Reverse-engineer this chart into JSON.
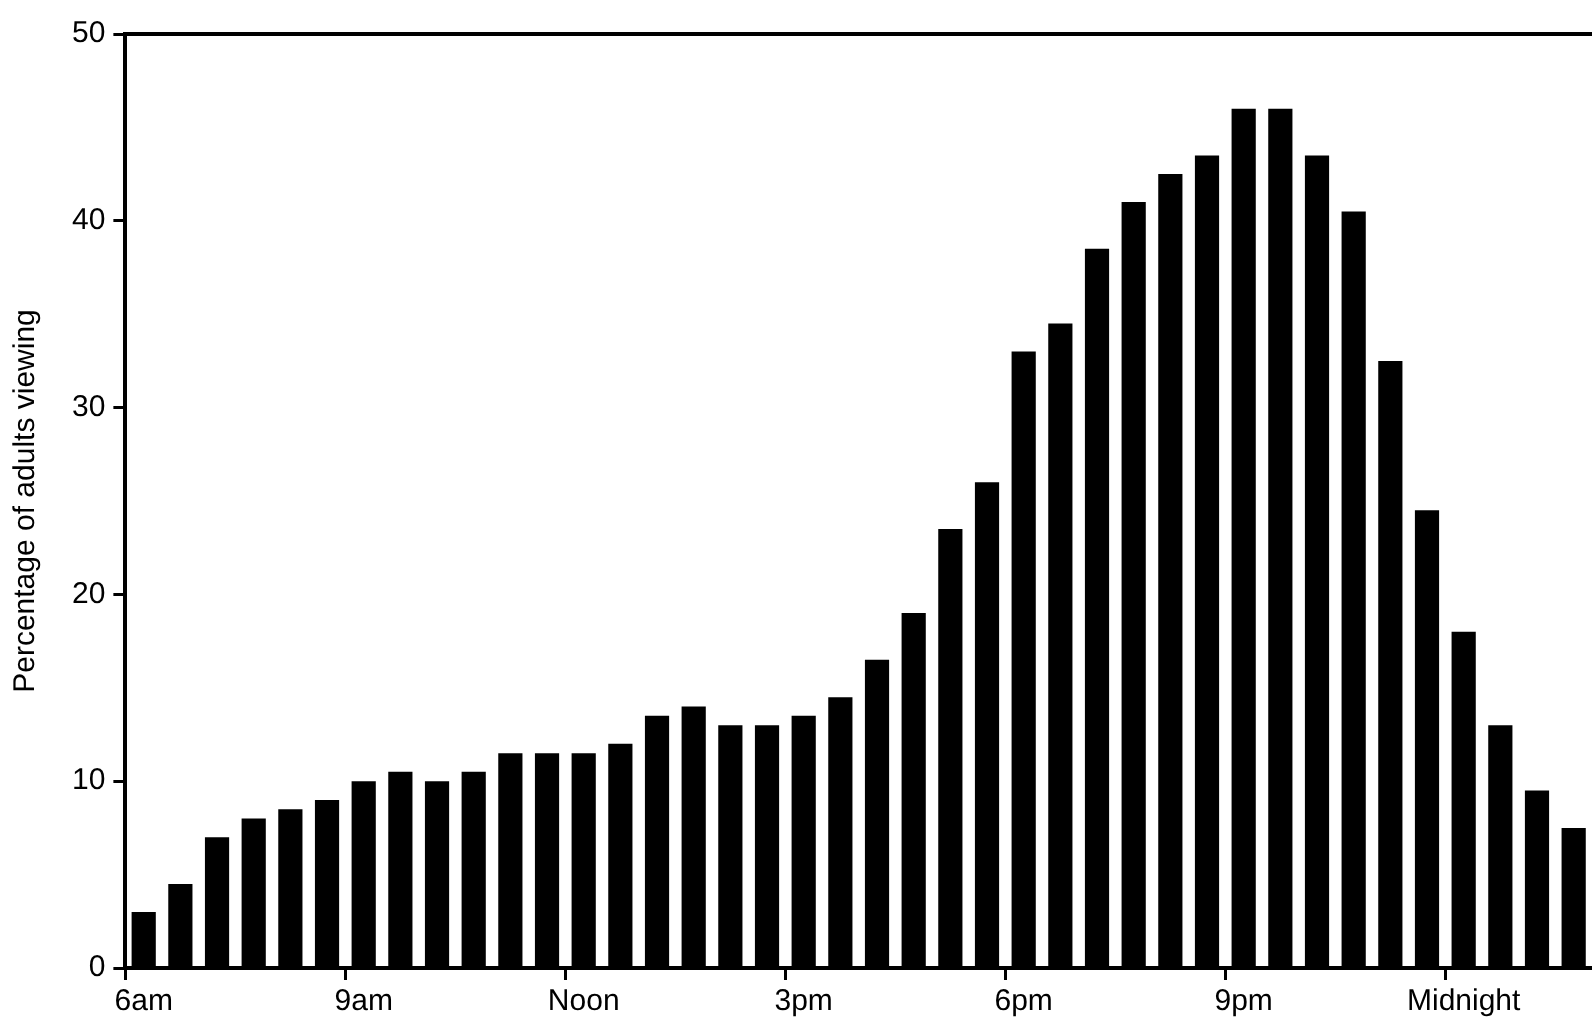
{
  "chart_data": {
    "type": "bar",
    "ylabel": "Percentage of adults viewing",
    "categories": [
      "6am",
      null,
      null,
      null,
      null,
      null,
      "9am",
      null,
      null,
      null,
      null,
      null,
      "Noon",
      null,
      null,
      null,
      null,
      null,
      "3pm",
      null,
      null,
      null,
      null,
      null,
      "6pm",
      null,
      null,
      null,
      null,
      null,
      "9pm",
      null,
      null,
      null,
      null,
      null,
      "Midnight",
      null,
      null,
      null
    ],
    "values": [
      3,
      4.5,
      7,
      8,
      8.5,
      9,
      10,
      10.5,
      10,
      10.5,
      11.5,
      11.5,
      11.5,
      12,
      13.5,
      14,
      13,
      13,
      13.5,
      14.5,
      16.5,
      19,
      23.5,
      26,
      33,
      34.5,
      38.5,
      41,
      42.5,
      43.5,
      46,
      46,
      43.5,
      40.5,
      32.5,
      24.5,
      18,
      13,
      9.5,
      7.5
    ],
    "color": "#000000",
    "ylim": [
      0,
      50
    ],
    "yticks": [
      0,
      10,
      20,
      30,
      40,
      50
    ],
    "grid": false,
    "legend": false
  }
}
